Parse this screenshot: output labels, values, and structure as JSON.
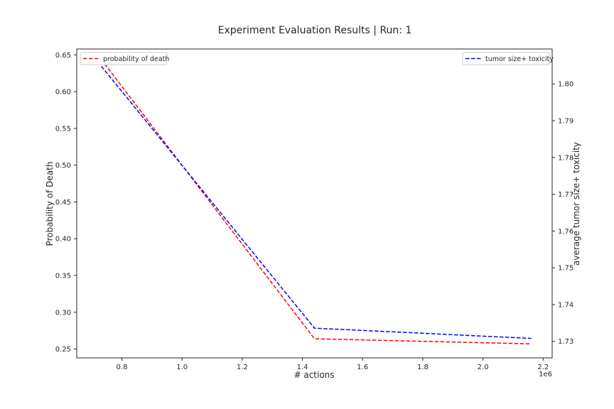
{
  "chart_data": {
    "type": "line",
    "title": "Experiment Evaluation Results | Run: 1",
    "xlabel": "# actions",
    "x_multiplier_label": "1e6",
    "ylabel_left": "Probability of Death",
    "ylabel_right": "average tumor size+ toxicity",
    "xlim": [
      0.65,
      2.23
    ],
    "ylim_left": [
      0.238,
      0.658
    ],
    "ylim_right": [
      1.7255,
      1.8095
    ],
    "x_ticks": [
      0.8,
      1.0,
      1.2,
      1.4,
      1.6,
      1.8,
      2.0,
      2.2
    ],
    "x_tick_labels": [
      "0.8",
      "1.0",
      "1.2",
      "1.4",
      "1.6",
      "1.8",
      "2.0",
      "2.2"
    ],
    "y_left_ticks": [
      0.25,
      0.3,
      0.35,
      0.4,
      0.45,
      0.5,
      0.55,
      0.6,
      0.65
    ],
    "y_left_tick_labels": [
      "0.25",
      "0.30",
      "0.35",
      "0.40",
      "0.45",
      "0.50",
      "0.55",
      "0.60",
      "0.65"
    ],
    "y_right_ticks": [
      1.73,
      1.74,
      1.75,
      1.76,
      1.77,
      1.78,
      1.79,
      1.8
    ],
    "y_right_tick_labels": [
      "1.73",
      "1.74",
      "1.75",
      "1.76",
      "1.77",
      "1.78",
      "1.79",
      "1.80"
    ],
    "grid": false,
    "series": [
      {
        "name": "probability of death",
        "axis": "left",
        "color": "#ff0000",
        "style": "dashed",
        "legend_position": "upper-left",
        "x": [
          0.72,
          1.44,
          2.16
        ],
        "y": [
          0.65,
          0.264,
          0.257
        ]
      },
      {
        "name": "tumor size+ toxicity",
        "axis": "right",
        "color": "#0000ff",
        "style": "dashed",
        "legend_position": "upper-right",
        "x": [
          0.72,
          1.44,
          2.16
        ],
        "y": [
          1.806,
          1.7336,
          1.7308
        ]
      }
    ]
  }
}
